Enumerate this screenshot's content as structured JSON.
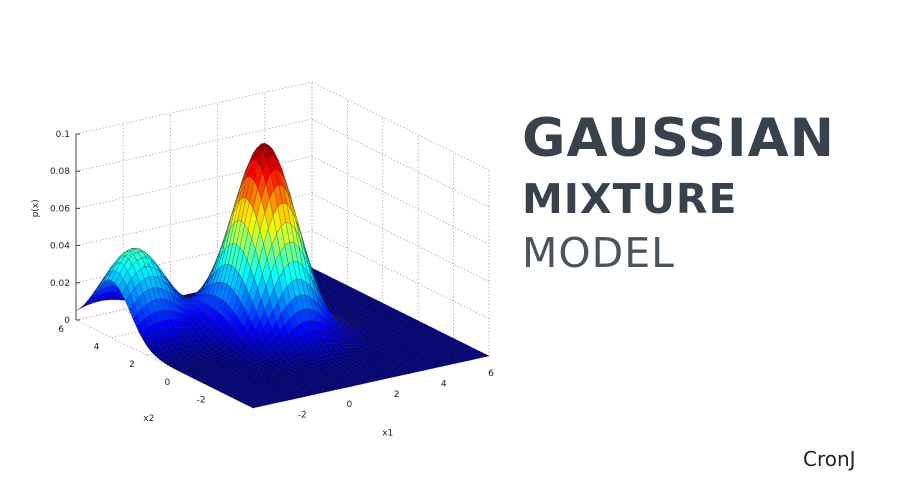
{
  "title": {
    "line1": "GAUSSIAN",
    "line2": "MIXTURE",
    "line3": "MODEL",
    "color": "#37424d"
  },
  "brand": "CronJ",
  "chart_data": {
    "type": "surface",
    "colormap": "jet",
    "zlabel": "p(x)",
    "xlabel": "x1",
    "ylabel": "x2",
    "x_range": [
      -4,
      6
    ],
    "y_range": [
      -4,
      6
    ],
    "z_range": [
      0,
      0.1
    ],
    "x_ticks": [
      "-2",
      "0",
      "2",
      "4",
      "6"
    ],
    "y_ticks": [
      "-2",
      "0",
      "2",
      "4",
      "6"
    ],
    "z_ticks": [
      "0",
      "0.02",
      "0.04",
      "0.06",
      "0.08",
      "0.1"
    ],
    "grid": true,
    "components": [
      {
        "mean": [
          1,
          2
        ],
        "peak": 0.1
      },
      {
        "mean": [
          -3,
          4
        ],
        "peak": 0.045
      }
    ]
  }
}
